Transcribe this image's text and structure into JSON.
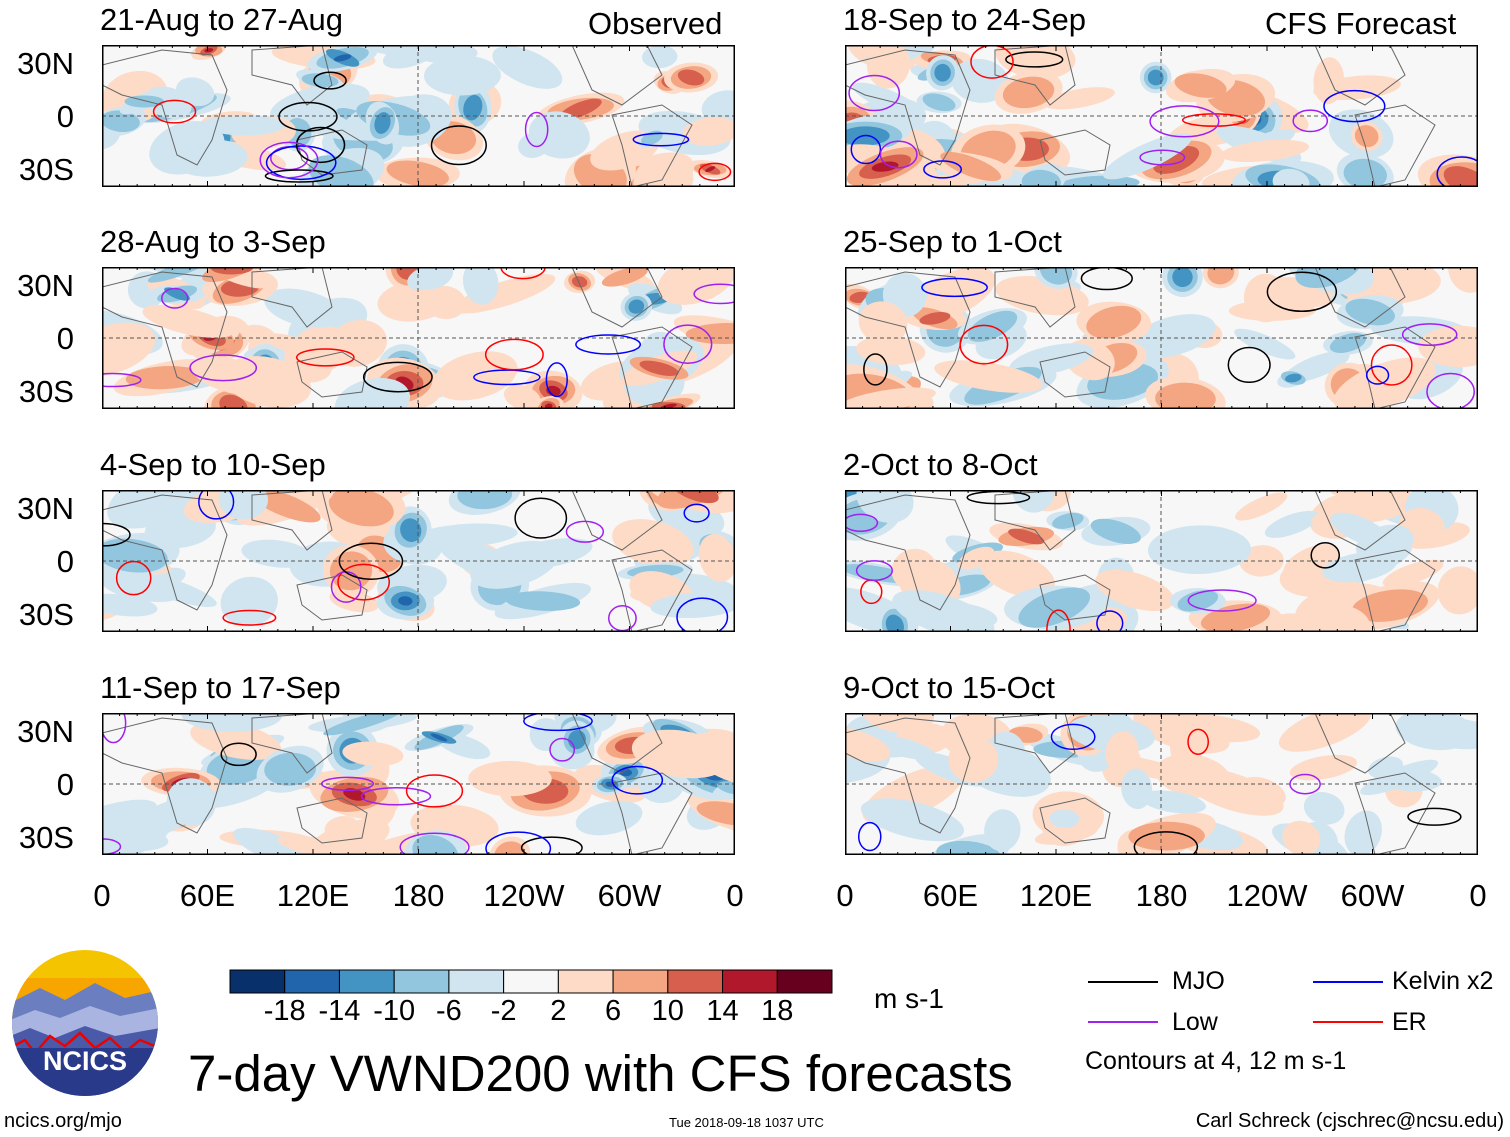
{
  "chart_data": {
    "type": "heatmap",
    "title": "7-day VWND200 with CFS forecasts",
    "columns": [
      {
        "label": "Observed",
        "panels": [
          "21-Aug to 27-Aug",
          "28-Aug to 3-Sep",
          "4-Sep to 10-Sep",
          "11-Sep to 17-Sep"
        ]
      },
      {
        "label": "CFS Forecast",
        "panels": [
          "18-Sep to 24-Sep",
          "25-Sep to 1-Oct",
          "2-Oct to 8-Oct",
          "9-Oct to 15-Oct"
        ]
      }
    ],
    "y_ticks": [
      "30N",
      "0",
      "30S"
    ],
    "x_ticks": [
      "0",
      "60E",
      "120E",
      "180",
      "120W",
      "60W",
      "0"
    ],
    "colorbar": {
      "levels": [
        "-18",
        "-14",
        "-10",
        "-6",
        "-2",
        "2",
        "6",
        "10",
        "14",
        "18"
      ],
      "colors": [
        "#08306b",
        "#2166ac",
        "#4393c3",
        "#92c5de",
        "#d1e5f0",
        "#f7f7f7",
        "#fddbc7",
        "#f4a582",
        "#d6604d",
        "#b2182b",
        "#67001f"
      ],
      "units": "m s-1"
    },
    "legend": [
      {
        "label": "MJO",
        "color": "#000000"
      },
      {
        "label": "Kelvin x2",
        "color": "#0000ff"
      },
      {
        "label": "Low",
        "color": "#a020f0"
      },
      {
        "label": "ER",
        "color": "#ff0000"
      }
    ],
    "contour_note": "Contours at 4, 12 m s-1"
  },
  "footer": {
    "logo_text": "NCICS",
    "url": "ncics.org/mjo",
    "timestamp": "Tue 2018-09-18 1037 UTC",
    "author": "Carl Schreck (cjschrec@ncsu.edu)"
  }
}
